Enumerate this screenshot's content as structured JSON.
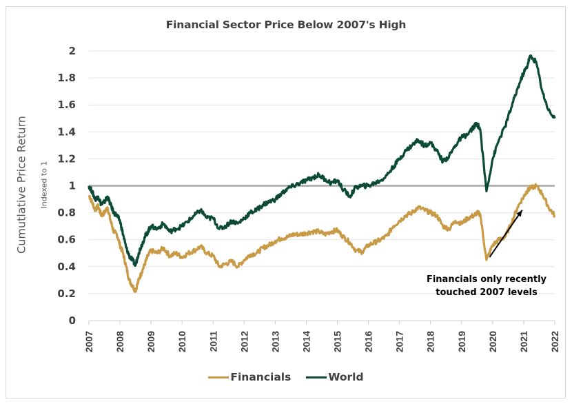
{
  "chart_data": {
    "type": "line",
    "title": "Financial Sector Price Below 2007's High",
    "ylabel": "Cumutlative Price Return",
    "ylabel_sub": "Indexed to 1",
    "xlabel": "",
    "ylim": [
      0,
      2
    ],
    "xlim": [
      2007,
      2022
    ],
    "yticks": [
      "0",
      "0.2",
      "0.4",
      "0.6",
      "0.8",
      "1",
      "1.2",
      "1.4",
      "1.6",
      "1.8",
      "2"
    ],
    "ytick_values": [
      0,
      0.2,
      0.4,
      0.6,
      0.8,
      1.0,
      1.2,
      1.4,
      1.6,
      1.8,
      2.0
    ],
    "xticks": [
      "2007",
      "2008",
      "2009",
      "2010",
      "2011",
      "2012",
      "2013",
      "2014",
      "2015",
      "2016",
      "2017",
      "2018",
      "2019",
      "2020",
      "2021",
      "2022"
    ],
    "xtick_values": [
      2007,
      2008,
      2009,
      2010,
      2011,
      2012,
      2013,
      2014,
      2015,
      2016,
      2017,
      2018,
      2019,
      2020,
      2021,
      2022
    ],
    "grid": true,
    "legend": "bottom",
    "reference_line": {
      "value": 1.0,
      "color": "#a6a6a6"
    },
    "series": [
      {
        "name": "Financials",
        "color": "#c99a45",
        "x": [
          2007.0,
          2007.1,
          2007.2,
          2007.3,
          2007.4,
          2007.5,
          2007.6,
          2007.7,
          2007.8,
          2007.9,
          2008.0,
          2008.1,
          2008.2,
          2008.3,
          2008.4,
          2008.5,
          2008.6,
          2008.7,
          2008.8,
          2008.9,
          2009.0,
          2009.2,
          2009.4,
          2009.6,
          2009.8,
          2010.0,
          2010.2,
          2010.4,
          2010.6,
          2010.8,
          2011.0,
          2011.2,
          2011.4,
          2011.6,
          2011.8,
          2012.0,
          2012.2,
          2012.4,
          2012.6,
          2012.8,
          2013.0,
          2013.2,
          2013.4,
          2013.6,
          2013.8,
          2014.0,
          2014.2,
          2014.4,
          2014.6,
          2014.8,
          2015.0,
          2015.2,
          2015.4,
          2015.6,
          2015.8,
          2016.0,
          2016.2,
          2016.4,
          2016.6,
          2016.8,
          2017.0,
          2017.2,
          2017.4,
          2017.6,
          2017.8,
          2018.0,
          2018.2,
          2018.4,
          2018.6,
          2018.8,
          2019.0,
          2019.2,
          2019.4,
          2019.5,
          2019.6,
          2019.8,
          2020.0,
          2020.2,
          2020.4,
          2020.6,
          2020.8,
          2021.0,
          2021.1,
          2021.2,
          2021.4,
          2021.6,
          2021.8,
          2022.0
        ],
        "values": [
          0.93,
          0.88,
          0.82,
          0.85,
          0.78,
          0.8,
          0.84,
          0.74,
          0.66,
          0.64,
          0.56,
          0.5,
          0.4,
          0.3,
          0.26,
          0.22,
          0.3,
          0.36,
          0.42,
          0.48,
          0.52,
          0.5,
          0.54,
          0.48,
          0.5,
          0.47,
          0.5,
          0.52,
          0.55,
          0.5,
          0.48,
          0.4,
          0.42,
          0.44,
          0.4,
          0.45,
          0.49,
          0.5,
          0.54,
          0.56,
          0.59,
          0.61,
          0.62,
          0.64,
          0.64,
          0.65,
          0.66,
          0.66,
          0.64,
          0.66,
          0.67,
          0.62,
          0.58,
          0.52,
          0.51,
          0.56,
          0.58,
          0.6,
          0.63,
          0.7,
          0.74,
          0.78,
          0.8,
          0.84,
          0.82,
          0.8,
          0.78,
          0.7,
          0.68,
          0.74,
          0.72,
          0.76,
          0.78,
          0.8,
          0.79,
          0.45,
          0.56,
          0.6,
          0.62,
          0.72,
          0.84,
          0.92,
          0.96,
          0.98,
          1.0,
          0.94,
          0.84,
          0.78
        ]
      },
      {
        "name": "World",
        "color": "#0b4a36",
        "x": [
          2007.0,
          2007.1,
          2007.2,
          2007.3,
          2007.4,
          2007.5,
          2007.6,
          2007.7,
          2007.8,
          2007.9,
          2008.0,
          2008.1,
          2008.2,
          2008.3,
          2008.4,
          2008.5,
          2008.6,
          2008.7,
          2008.8,
          2008.9,
          2009.0,
          2009.2,
          2009.4,
          2009.6,
          2009.8,
          2010.0,
          2010.2,
          2010.4,
          2010.6,
          2010.8,
          2011.0,
          2011.2,
          2011.4,
          2011.6,
          2011.8,
          2012.0,
          2012.2,
          2012.4,
          2012.6,
          2012.8,
          2013.0,
          2013.2,
          2013.4,
          2013.6,
          2013.8,
          2014.0,
          2014.2,
          2014.4,
          2014.6,
          2014.8,
          2015.0,
          2015.2,
          2015.4,
          2015.6,
          2015.8,
          2016.0,
          2016.2,
          2016.4,
          2016.6,
          2016.8,
          2017.0,
          2017.2,
          2017.4,
          2017.6,
          2017.8,
          2018.0,
          2018.2,
          2018.4,
          2018.6,
          2018.8,
          2019.0,
          2019.2,
          2019.4,
          2019.5,
          2019.6,
          2019.8,
          2020.0,
          2020.2,
          2020.4,
          2020.6,
          2020.8,
          2021.0,
          2021.1,
          2021.2,
          2021.4,
          2021.6,
          2021.8,
          2022.0
        ],
        "values": [
          1.0,
          0.96,
          0.9,
          0.92,
          0.86,
          0.88,
          0.92,
          0.86,
          0.8,
          0.78,
          0.74,
          0.64,
          0.54,
          0.48,
          0.45,
          0.41,
          0.5,
          0.56,
          0.62,
          0.66,
          0.7,
          0.68,
          0.72,
          0.66,
          0.68,
          0.7,
          0.74,
          0.78,
          0.82,
          0.76,
          0.76,
          0.68,
          0.7,
          0.74,
          0.72,
          0.76,
          0.8,
          0.82,
          0.86,
          0.88,
          0.9,
          0.94,
          0.98,
          1.0,
          1.02,
          1.04,
          1.06,
          1.08,
          1.05,
          1.02,
          1.04,
          0.97,
          0.92,
          0.99,
          1.0,
          1.0,
          1.02,
          1.04,
          1.08,
          1.14,
          1.2,
          1.26,
          1.3,
          1.34,
          1.3,
          1.32,
          1.26,
          1.18,
          1.22,
          1.3,
          1.36,
          1.38,
          1.44,
          1.46,
          1.42,
          0.96,
          1.2,
          1.34,
          1.44,
          1.58,
          1.72,
          1.84,
          1.88,
          1.96,
          1.92,
          1.7,
          1.56,
          1.5
        ]
      }
    ],
    "annotation": {
      "text_line1": "Financials  only recently",
      "text_line2": "touched 2007 levels",
      "arrow_from": [
        2019.9,
        0.47
      ],
      "arrow_to": [
        2020.95,
        0.82
      ]
    }
  }
}
